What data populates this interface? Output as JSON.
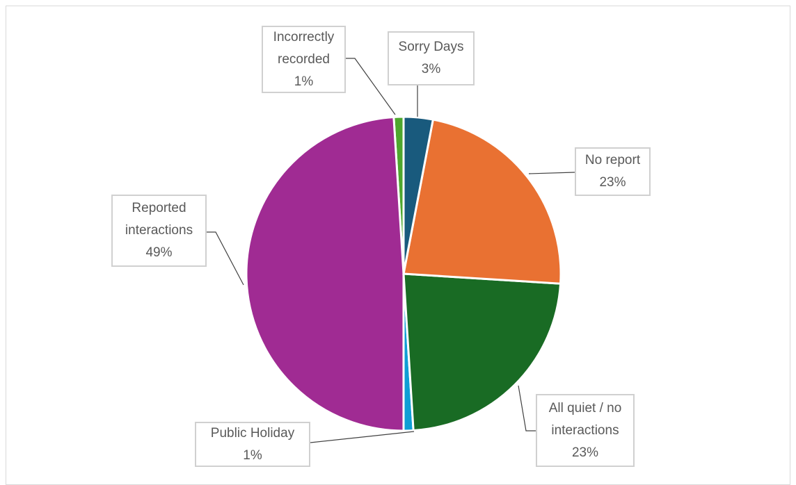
{
  "chart_data": {
    "type": "pie",
    "categories": [
      "Sorry Days",
      "No report",
      "All quiet / no interactions",
      "Public Holiday",
      "Reported interactions",
      "Incorrectly recorded"
    ],
    "values": [
      3,
      23,
      23,
      1,
      49,
      1
    ],
    "value_labels": [
      "3%",
      "23%",
      "23%",
      "1%",
      "49%",
      "1%"
    ],
    "colors": [
      "#195a7d",
      "#e97132",
      "#196b24",
      "#0f9ed5",
      "#a02b93",
      "#4ea72e"
    ]
  }
}
